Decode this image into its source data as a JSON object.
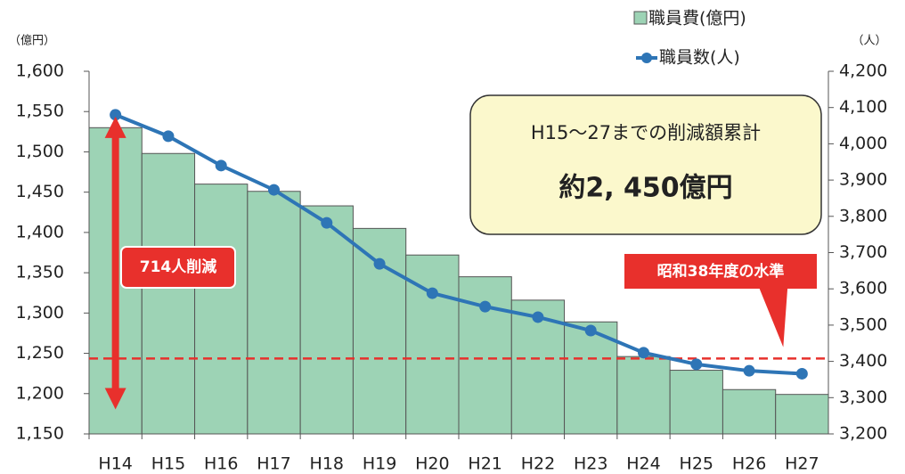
{
  "chart_data": {
    "type": "bar-line",
    "y_unit_label": "（億円）",
    "y2_unit_label": "（人）",
    "categories": [
      "H14",
      "H15",
      "H16",
      "H17",
      "H18",
      "H19",
      "H20",
      "H21",
      "H22",
      "H23",
      "H24",
      "H25",
      "H26",
      "H27"
    ],
    "series": [
      {
        "name": "職員費(億円)",
        "type": "bar",
        "color": "#9dd3b5",
        "values": [
          1530,
          1498,
          1460,
          1451,
          1433,
          1405,
          1372,
          1345,
          1316,
          1289,
          1246,
          1229,
          1205,
          1199
        ]
      },
      {
        "name": "職員数(人)",
        "type": "line",
        "axis": "y2",
        "color": "#2e75b6",
        "values": [
          4080,
          4021,
          3940,
          3873,
          3782,
          3669,
          3588,
          3551,
          3522,
          3485,
          3424,
          3392,
          3374,
          3366
        ]
      }
    ],
    "ylim": [
      1150,
      1600
    ],
    "yticks": [
      {
        "value": 1150,
        "label": "1,150"
      },
      {
        "value": 1200,
        "label": "1,200"
      },
      {
        "value": 1250,
        "label": "1,250"
      },
      {
        "value": 1300,
        "label": "1,300"
      },
      {
        "value": 1350,
        "label": "1,350"
      },
      {
        "value": 1400,
        "label": "1,400"
      },
      {
        "value": 1450,
        "label": "1,450"
      },
      {
        "value": 1500,
        "label": "1,500"
      },
      {
        "value": 1550,
        "label": "1,550"
      },
      {
        "value": 1600,
        "label": "1,600"
      }
    ],
    "y2lim": [
      3200,
      4200
    ],
    "y2ticks": [
      {
        "value": 3200,
        "label": "3,200"
      },
      {
        "value": 3300,
        "label": "3,300"
      },
      {
        "value": 3400,
        "label": "3,400"
      },
      {
        "value": 3500,
        "label": "3,500"
      },
      {
        "value": 3600,
        "label": "3,600"
      },
      {
        "value": 3700,
        "label": "3,700"
      },
      {
        "value": 3800,
        "label": "3,800"
      },
      {
        "value": 3900,
        "label": "3,900"
      },
      {
        "value": 4000,
        "label": "4,000"
      },
      {
        "value": 4100,
        "label": "4,100"
      },
      {
        "value": 4200,
        "label": "4,200"
      }
    ],
    "reference_line": {
      "value": 3408,
      "axis": "y2",
      "label": "昭和38年度の水準"
    },
    "reduction_label": "714人削減",
    "callout": {
      "title": "H15～27までの削減額累計",
      "total": "約2, 450億円"
    }
  }
}
